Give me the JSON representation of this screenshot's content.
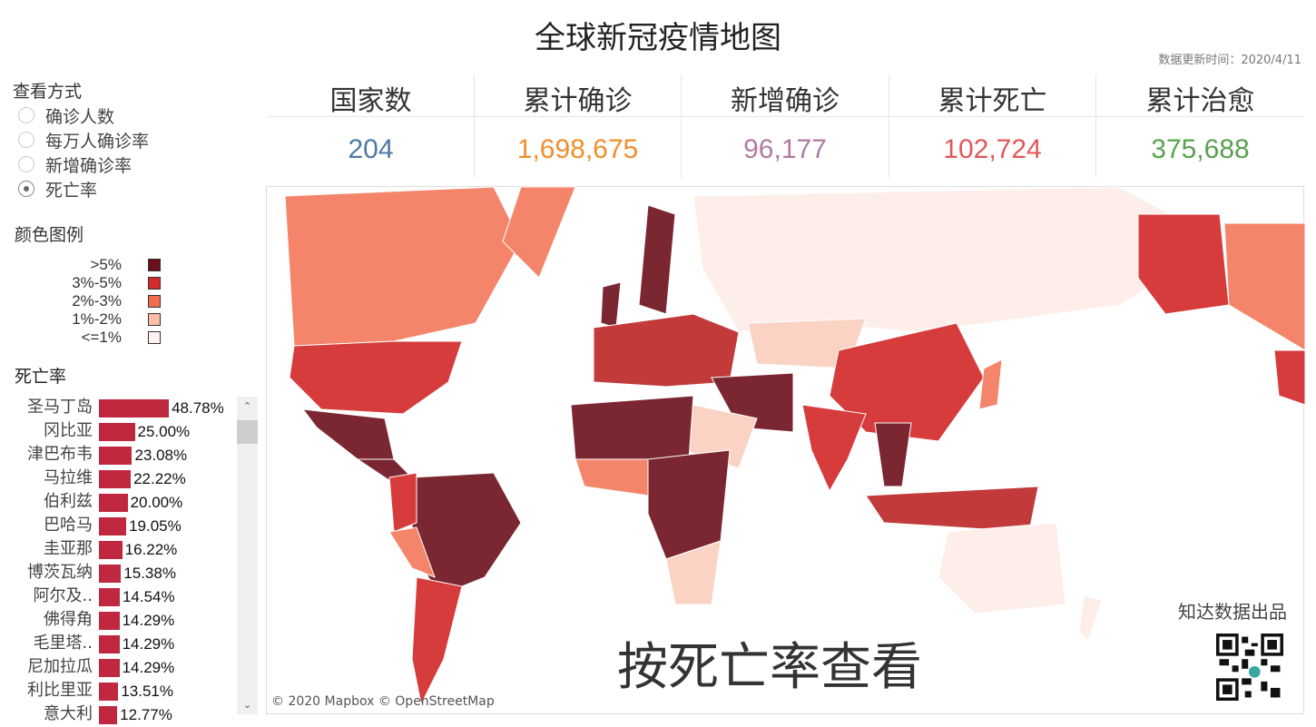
{
  "title": "全球新冠疫情地图",
  "updated": "数据更新时间：2020/4/11",
  "view": {
    "label": "查看方式",
    "options": [
      "确诊人数",
      "每万人确诊率",
      "新增确诊率",
      "死亡率"
    ],
    "selected": 3
  },
  "legend": {
    "title": "颜色图例",
    "items": [
      {
        "label": ">5%",
        "color": "#6b0f1a"
      },
      {
        "label": "3%-5%",
        "color": "#d42a2a"
      },
      {
        "label": "2%-3%",
        "color": "#f26b4f"
      },
      {
        "label": "1%-2%",
        "color": "#fbbea8"
      },
      {
        "label": "<=1%",
        "color": "#fff3ef"
      }
    ]
  },
  "kpis": [
    {
      "label": "国家数",
      "value": "204",
      "color": "#4e79a7"
    },
    {
      "label": "累计确诊",
      "value": "1,698,675",
      "color": "#f28e2b"
    },
    {
      "label": "新增确诊",
      "value": "96,177",
      "color": "#b07aa1"
    },
    {
      "label": "累计死亡",
      "value": "102,724",
      "color": "#e15759"
    },
    {
      "label": "累计治愈",
      "value": "375,688",
      "color": "#59a14f"
    }
  ],
  "list": {
    "title": "死亡率",
    "rows": [
      {
        "name": "圣马丁岛",
        "value": 48.78,
        "label": "48.78%"
      },
      {
        "name": "冈比亚",
        "value": 25.0,
        "label": "25.00%"
      },
      {
        "name": "津巴布韦",
        "value": 23.08,
        "label": "23.08%"
      },
      {
        "name": "马拉维",
        "value": 22.22,
        "label": "22.22%"
      },
      {
        "name": "伯利兹",
        "value": 20.0,
        "label": "20.00%"
      },
      {
        "name": "巴哈马",
        "value": 19.05,
        "label": "19.05%"
      },
      {
        "name": "圭亚那",
        "value": 16.22,
        "label": "16.22%"
      },
      {
        "name": "博茨瓦纳",
        "value": 15.38,
        "label": "15.38%"
      },
      {
        "name": "阿尔及..",
        "value": 14.54,
        "label": "14.54%"
      },
      {
        "name": "佛得角",
        "value": 14.29,
        "label": "14.29%"
      },
      {
        "name": "毛里塔..",
        "value": 14.29,
        "label": "14.29%"
      },
      {
        "name": "尼加拉瓜",
        "value": 14.29,
        "label": "14.29%"
      },
      {
        "name": "利比里亚",
        "value": 13.51,
        "label": "13.51%"
      },
      {
        "name": "意大利",
        "value": 12.77,
        "label": "12.77%"
      }
    ]
  },
  "map": {
    "overlay": "按死亡率查看",
    "brand": "知达数据出品",
    "attribution": "© 2020 Mapbox © OpenStreetMap"
  }
}
